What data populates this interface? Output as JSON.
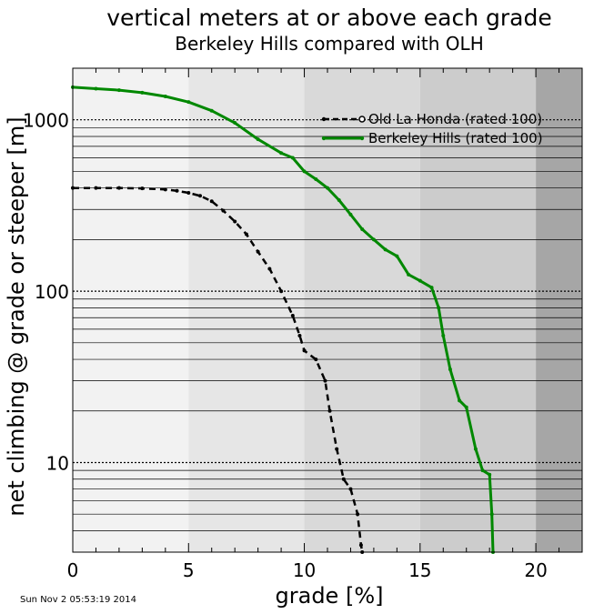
{
  "chart_data": {
    "type": "line",
    "title": "vertical meters at or above each grade",
    "subtitle": "Berkeley Hills compared with OLH",
    "xlabel": "grade [%]",
    "ylabel": "net climbing @ grade or steeper [m]",
    "xlim": [
      0,
      22
    ],
    "ylim": [
      3,
      2000
    ],
    "yscale": "log",
    "x_ticks": [
      0,
      5,
      10,
      15,
      20
    ],
    "x_tick_labels": [
      "0",
      "5",
      "10",
      "15",
      "20"
    ],
    "y_tick_labels": [
      {
        "value": 10,
        "label": "10"
      },
      {
        "value": 100,
        "label": "100"
      },
      {
        "value": 1000,
        "label": "1000"
      }
    ],
    "grid": "horizontal",
    "background_bands": [
      {
        "from": 0,
        "to": 5,
        "color": "#f2f2f2"
      },
      {
        "from": 5,
        "to": 10,
        "color": "#e6e6e6"
      },
      {
        "from": 10,
        "to": 15,
        "color": "#d9d9d9"
      },
      {
        "from": 15,
        "to": 20,
        "color": "#cccccc"
      },
      {
        "from": 20,
        "to": 22,
        "color": "#a6a6a6"
      }
    ],
    "legend": {
      "placement": "top-right"
    },
    "series": [
      {
        "name": "Old La Honda (rated 100)",
        "color": "#000000",
        "dash": "dashed",
        "marker": "open-circle",
        "points": [
          [
            0,
            400
          ],
          [
            1,
            400
          ],
          [
            2,
            400
          ],
          [
            3,
            398
          ],
          [
            4,
            392
          ],
          [
            4.5,
            385
          ],
          [
            5,
            375
          ],
          [
            5.5,
            360
          ],
          [
            6,
            335
          ],
          [
            6.5,
            295
          ],
          [
            7,
            255
          ],
          [
            7.5,
            215
          ],
          [
            8,
            170
          ],
          [
            8.5,
            135
          ],
          [
            9,
            100
          ],
          [
            9.5,
            72
          ],
          [
            9.8,
            55
          ],
          [
            10,
            45
          ],
          [
            10.5,
            40
          ],
          [
            10.9,
            30
          ],
          [
            11.1,
            20
          ],
          [
            11.4,
            12
          ],
          [
            11.7,
            8
          ],
          [
            12.0,
            7
          ],
          [
            12.3,
            5
          ],
          [
            12.45,
            3.3
          ],
          [
            12.5,
            3
          ]
        ]
      },
      {
        "name": "Berkeley Hills (rated 100)",
        "color": "#008800",
        "dash": "solid",
        "marker": "dot",
        "points": [
          [
            0,
            1550
          ],
          [
            1,
            1520
          ],
          [
            2,
            1490
          ],
          [
            3,
            1440
          ],
          [
            4,
            1370
          ],
          [
            5,
            1270
          ],
          [
            6,
            1130
          ],
          [
            7,
            960
          ],
          [
            8,
            770
          ],
          [
            9,
            640
          ],
          [
            9.5,
            600
          ],
          [
            10,
            500
          ],
          [
            10.5,
            450
          ],
          [
            11,
            400
          ],
          [
            11.5,
            340
          ],
          [
            12,
            280
          ],
          [
            12.5,
            230
          ],
          [
            13,
            200
          ],
          [
            13.5,
            175
          ],
          [
            14,
            160
          ],
          [
            14.5,
            125
          ],
          [
            15,
            115
          ],
          [
            15.5,
            105
          ],
          [
            15.8,
            80
          ],
          [
            16,
            55
          ],
          [
            16.3,
            35
          ],
          [
            16.7,
            23
          ],
          [
            17,
            21
          ],
          [
            17.4,
            12
          ],
          [
            17.7,
            9
          ],
          [
            18,
            8.5
          ],
          [
            18.1,
            5
          ],
          [
            18.15,
            3
          ]
        ]
      }
    ]
  },
  "footer": {
    "timestamp": "Sun Nov  2 05:53:19 2014"
  }
}
